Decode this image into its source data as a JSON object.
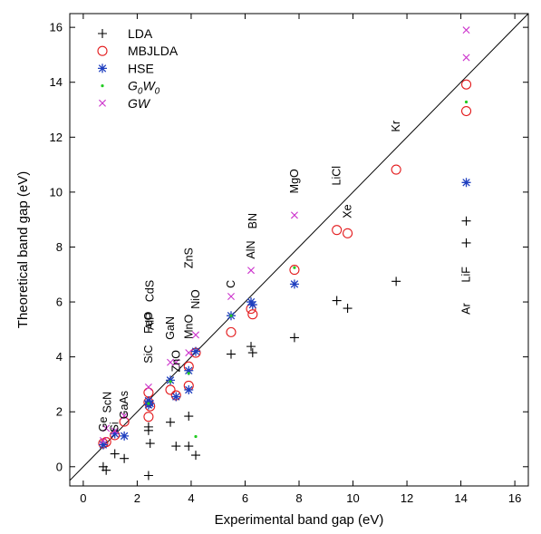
{
  "chart_data": {
    "type": "scatter",
    "xlabel": "Experimental band gap (eV)",
    "ylabel": "Theoretical band gap  (eV)",
    "xlim": [
      -0.5,
      16.5
    ],
    "ylim": [
      -0.7,
      16.5
    ],
    "xticks": [
      0,
      2,
      4,
      6,
      8,
      10,
      12,
      14,
      16
    ],
    "yticks": [
      0,
      2,
      4,
      6,
      8,
      10,
      12,
      14,
      16
    ],
    "grid": false,
    "legend_position": "top-left",
    "reference_line": "y = x",
    "series": [
      {
        "name": "LDA",
        "marker": "plus",
        "color": "#000000",
        "points": [
          [
            0.74,
            0.0
          ],
          [
            0.85,
            -0.13
          ],
          [
            1.17,
            0.47
          ],
          [
            1.52,
            0.3
          ],
          [
            2.42,
            -0.32
          ],
          [
            2.42,
            1.45
          ],
          [
            2.42,
            1.32
          ],
          [
            2.48,
            0.85
          ],
          [
            3.23,
            1.62
          ],
          [
            3.44,
            0.75
          ],
          [
            3.91,
            1.84
          ],
          [
            3.91,
            0.75
          ],
          [
            4.17,
            0.42
          ],
          [
            5.48,
            4.1
          ],
          [
            6.22,
            4.38
          ],
          [
            6.28,
            4.15
          ],
          [
            7.83,
            4.7
          ],
          [
            9.4,
            6.05
          ],
          [
            9.8,
            5.77
          ],
          [
            11.6,
            6.75
          ],
          [
            14.2,
            8.95
          ],
          [
            14.2,
            8.15
          ]
        ]
      },
      {
        "name": "MBJLDA",
        "marker": "circle",
        "color": "#e31a1c",
        "points": [
          [
            0.74,
            0.85
          ],
          [
            0.85,
            0.9
          ],
          [
            1.17,
            1.15
          ],
          [
            1.52,
            1.64
          ],
          [
            2.42,
            2.7
          ],
          [
            2.42,
            2.35
          ],
          [
            2.42,
            1.82
          ],
          [
            2.48,
            2.2
          ],
          [
            3.23,
            2.8
          ],
          [
            3.44,
            2.6
          ],
          [
            3.91,
            3.65
          ],
          [
            3.91,
            2.95
          ],
          [
            4.17,
            4.15
          ],
          [
            5.48,
            4.9
          ],
          [
            6.22,
            5.75
          ],
          [
            6.28,
            5.55
          ],
          [
            7.83,
            7.17
          ],
          [
            9.4,
            8.62
          ],
          [
            9.8,
            8.5
          ],
          [
            11.6,
            10.82
          ],
          [
            14.2,
            13.92
          ],
          [
            14.2,
            12.95
          ]
        ]
      },
      {
        "name": "HSE",
        "marker": "asterisk",
        "color": "#1f3fbf",
        "points": [
          [
            0.74,
            0.8
          ],
          [
            1.17,
            1.2
          ],
          [
            1.52,
            1.12
          ],
          [
            2.42,
            2.4
          ],
          [
            2.42,
            2.25
          ],
          [
            2.48,
            2.3
          ],
          [
            3.23,
            3.15
          ],
          [
            3.44,
            2.55
          ],
          [
            3.91,
            3.5
          ],
          [
            3.91,
            2.8
          ],
          [
            4.17,
            4.2
          ],
          [
            5.48,
            5.5
          ],
          [
            6.22,
            6.0
          ],
          [
            6.28,
            5.9
          ],
          [
            7.83,
            6.65
          ],
          [
            14.2,
            10.35
          ]
        ]
      },
      {
        "name": "G0W0",
        "marker": "dot",
        "color": "#22cc22",
        "points": [
          [
            2.42,
            2.3
          ],
          [
            3.23,
            3.1
          ],
          [
            3.91,
            3.4
          ],
          [
            4.17,
            1.1
          ],
          [
            5.48,
            5.5
          ],
          [
            7.83,
            7.25
          ],
          [
            14.2,
            13.28
          ]
        ]
      },
      {
        "name": "GW",
        "marker": "cross",
        "color": "#cc33cc",
        "points": [
          [
            0.74,
            0.95
          ],
          [
            0.85,
            1.4
          ],
          [
            1.17,
            1.3
          ],
          [
            1.52,
            1.85
          ],
          [
            2.42,
            2.9
          ],
          [
            3.23,
            3.8
          ],
          [
            3.44,
            3.8
          ],
          [
            3.91,
            4.15
          ],
          [
            4.17,
            4.8
          ],
          [
            5.48,
            6.2
          ],
          [
            6.22,
            7.15
          ],
          [
            7.83,
            9.16
          ],
          [
            14.2,
            14.9
          ],
          [
            14.2,
            15.9
          ]
        ]
      }
    ],
    "annotations": [
      {
        "text": "Ge",
        "x": 0.74,
        "y": 1.55,
        "rotate": true
      },
      {
        "text": "Si",
        "x": 1.17,
        "y": 1.45,
        "rotate": true
      },
      {
        "text": "ScN",
        "x": 0.9,
        "y": 2.35,
        "rotate": true
      },
      {
        "text": "GaAs",
        "x": 1.52,
        "y": 2.25,
        "rotate": true
      },
      {
        "text": "SiC",
        "x": 2.42,
        "y": 4.1,
        "rotate": true
      },
      {
        "text": "FeO",
        "x": 2.42,
        "y": 5.25,
        "rotate": true
      },
      {
        "text": "AlP",
        "x": 2.48,
        "y": 5.3,
        "rotate": true
      },
      {
        "text": "CdS",
        "x": 2.48,
        "y": 6.4,
        "rotate": true
      },
      {
        "text": "ZnO",
        "x": 3.44,
        "y": 3.85,
        "rotate": true
      },
      {
        "text": "GaN",
        "x": 3.23,
        "y": 5.05,
        "rotate": true
      },
      {
        "text": "MnO",
        "x": 3.91,
        "y": 5.1,
        "rotate": true
      },
      {
        "text": "NiO",
        "x": 4.17,
        "y": 6.1,
        "rotate": true
      },
      {
        "text": "ZnS",
        "x": 3.91,
        "y": 7.6,
        "rotate": true
      },
      {
        "text": "C",
        "x": 5.48,
        "y": 6.65,
        "rotate": true
      },
      {
        "text": "AlN",
        "x": 6.22,
        "y": 7.9,
        "rotate": true
      },
      {
        "text": "BN",
        "x": 6.28,
        "y": 8.95,
        "rotate": true
      },
      {
        "text": "MgO",
        "x": 7.83,
        "y": 10.4,
        "rotate": true
      },
      {
        "text": "LiCl",
        "x": 9.4,
        "y": 10.6,
        "rotate": true
      },
      {
        "text": "Xe",
        "x": 9.8,
        "y": 9.3,
        "rotate": true
      },
      {
        "text": "Kr",
        "x": 11.6,
        "y": 12.4,
        "rotate": true
      },
      {
        "text": "LiF",
        "x": 14.2,
        "y": 7.0,
        "rotate": true
      },
      {
        "text": "Ar",
        "x": 14.2,
        "y": 5.75,
        "rotate": true
      }
    ]
  },
  "legend": [
    {
      "label": "LDA",
      "marker": "plus",
      "color": "#000000"
    },
    {
      "label": "MBJLDA",
      "marker": "circle",
      "color": "#e31a1c"
    },
    {
      "label": "HSE",
      "marker": "asterisk",
      "color": "#1f3fbf"
    },
    {
      "label": "G0W0",
      "marker": "dot",
      "color": "#22cc22",
      "italic": true,
      "subscripts": [
        "G",
        "0",
        "W",
        "0"
      ]
    },
    {
      "label": "GW",
      "marker": "cross",
      "color": "#cc33cc",
      "italic": true
    }
  ]
}
